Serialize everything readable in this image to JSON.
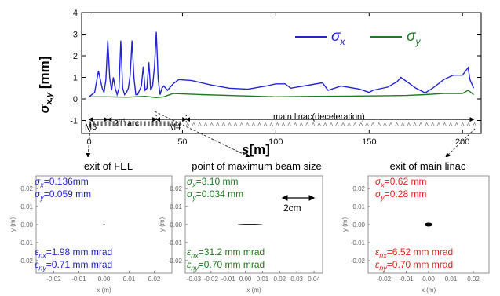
{
  "chart_data": {
    "main": {
      "type": "line",
      "xlabel": "s[m]",
      "ylabel": "σx,y [mm]",
      "xlim": [
        -4,
        210
      ],
      "ylim": [
        -1.6,
        4.0
      ],
      "x_ticks": [
        "0",
        "50",
        "100",
        "150",
        "200"
      ],
      "y_ticks": [
        "-1",
        "0",
        "1",
        "2",
        "3",
        "4"
      ],
      "series": [
        {
          "name": "σx",
          "color": "#2323d6",
          "x": [
            0,
            3,
            5,
            7,
            8,
            9,
            10,
            11,
            12,
            13,
            14,
            15,
            16,
            17,
            18,
            19,
            20,
            21,
            22,
            23,
            24,
            25,
            26,
            27,
            28,
            29,
            30,
            31,
            32,
            33,
            34,
            35,
            36,
            37,
            38,
            39,
            40,
            42,
            45,
            48,
            55,
            65,
            75,
            85,
            95,
            100,
            105,
            108,
            115,
            125,
            128,
            135,
            145,
            150,
            152,
            160,
            165,
            167,
            175,
            180,
            184,
            190,
            195,
            200,
            203,
            204,
            206
          ],
          "y": [
            0.1,
            0.3,
            1.3,
            0.5,
            0.3,
            0.9,
            2.7,
            1.0,
            0.4,
            1.0,
            0.5,
            0.2,
            0.5,
            2.7,
            0.5,
            0.2,
            0.3,
            0.5,
            1.1,
            2.7,
            1.0,
            0.2,
            0.2,
            0.4,
            0.6,
            1.5,
            0.4,
            0.5,
            1.7,
            0.4,
            0.6,
            1.5,
            3.1,
            0.9,
            0.2,
            0.5,
            0.6,
            0.4,
            0.7,
            0.9,
            0.85,
            0.65,
            0.5,
            0.45,
            0.6,
            0.7,
            0.7,
            0.5,
            0.6,
            0.75,
            0.4,
            0.6,
            0.45,
            0.3,
            0.4,
            0.55,
            0.8,
            1.0,
            0.5,
            0.28,
            0.5,
            0.9,
            1.1,
            1.1,
            1.45,
            0.9,
            0.5
          ]
        },
        {
          "name": "σy",
          "color": "#1f7a1f",
          "x": [
            0,
            10,
            20,
            30,
            36,
            40,
            45,
            60,
            80,
            100,
            120,
            140,
            160,
            170,
            180,
            190,
            200,
            203,
            206
          ],
          "y": [
            0.1,
            0.1,
            0.08,
            0.12,
            0.06,
            0.1,
            0.25,
            0.2,
            0.15,
            0.1,
            0.12,
            0.13,
            0.15,
            0.16,
            0.2,
            0.25,
            0.25,
            0.4,
            0.2
          ]
        }
      ],
      "section_labels": [
        "M3",
        "2nd arc",
        "M4",
        "main linac(deceleration)"
      ]
    },
    "panels": [
      {
        "title": "exit of FEL",
        "color": "#1f1fd6",
        "sx": "σx=0.136mm",
        "sy": "σy=0.059 mm",
        "enx": "εnx=1.98 mm mrad",
        "eny": "εny=0.71 mm mrad",
        "xlabel": "x (m)",
        "ylabel": "y (m)",
        "y_ticks": [
          "0.02",
          "0.01",
          "0.00",
          "-0.01",
          "-0.02"
        ],
        "x_ticks": [
          "-0.02",
          "-0.01",
          "0.00",
          "0.01",
          "0.02"
        ]
      },
      {
        "title": "point of maximum beam size",
        "color": "#1f7a1f",
        "sx": "σx=3.10 mm",
        "sy": "σy=0.034 mm",
        "enx": "εnx=31.2 mm mrad",
        "eny": "εny=0.70 mm mrad",
        "scale_label": "2cm",
        "xlabel": "x (m)",
        "ylabel": "y (m)",
        "y_ticks": [
          "0.02",
          "0.01",
          "0.00",
          "-0.01",
          "-0.02"
        ],
        "x_ticks": [
          "-0.03",
          "-0.02",
          "-0.01",
          "0.00",
          "0.01",
          "0.02",
          "0.03",
          "0.04"
        ]
      },
      {
        "title": "exit of main linac",
        "color": "#ee1c1c",
        "sx": "σx=0.62 mm",
        "sy": "σy=0.28 mm",
        "enx": "εnx=6.52 mm mrad",
        "eny": "εny=0.70 mm mrad",
        "xlabel": "x (m)",
        "ylabel": "y (m)",
        "y_ticks": [
          "0.02",
          "0.01",
          "0.00",
          "-0.01",
          "-0.02"
        ],
        "x_ticks": [
          "-0.02",
          "-0.01",
          "0.00",
          "0.01",
          "0.02"
        ]
      }
    ]
  }
}
